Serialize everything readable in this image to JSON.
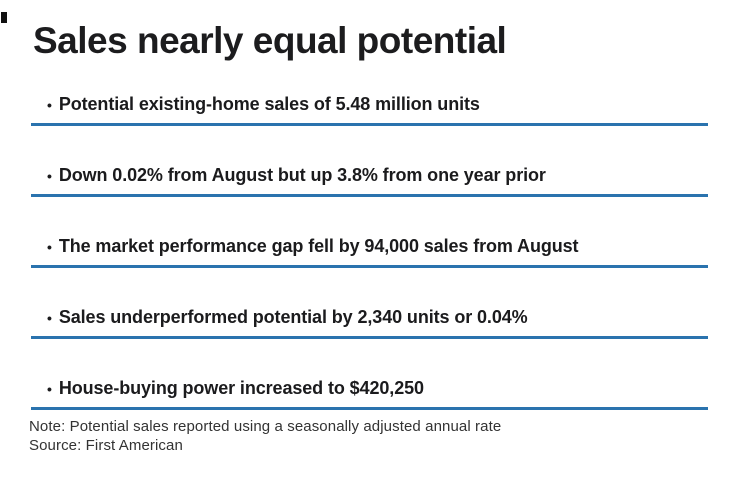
{
  "title": "Sales nearly equal potential",
  "bullets": {
    "marker": "•",
    "items": [
      "Potential existing-home sales of 5.48 million units",
      "Down 0.02% from August but up 3.8% from one year prior",
      "The market performance gap fell by 94,000 sales from August",
      "Sales underperformed potential by 2,340 units or 0.04%",
      "House-buying power increased to $420,250"
    ]
  },
  "footnotes": {
    "note": "Note: Potential sales reported using a seasonally adjusted annual rate",
    "source": "Source: First American"
  },
  "colors": {
    "accent_rule": "#2A73AE",
    "text": "#1B1B1D",
    "note_text": "#333333",
    "background": "#FFFFFF"
  }
}
